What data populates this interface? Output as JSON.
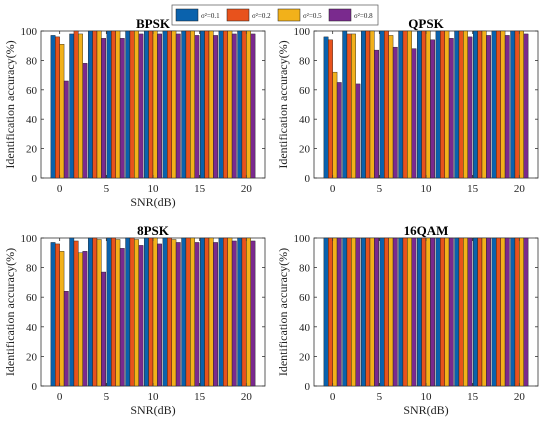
{
  "legend": [
    {
      "label": "σ²=0.1",
      "color": "#0a62ad"
    },
    {
      "label": "σ²=0.2",
      "color": "#e8521c"
    },
    {
      "label": "σ²=0.5",
      "color": "#f2b11a"
    },
    {
      "label": "σ²=0.8",
      "color": "#7a2a8e"
    }
  ],
  "chart_data": [
    {
      "type": "bar",
      "title": "BPSK",
      "xlabel": "SNR(dB)",
      "ylabel": "Identification accuracy(%)",
      "x": [
        0,
        2,
        4,
        6,
        8,
        10,
        12,
        14,
        16,
        18,
        20
      ],
      "xticks": [
        0,
        5,
        10,
        15,
        20
      ],
      "ylim": [
        0,
        100
      ],
      "yticks": [
        0,
        20,
        40,
        60,
        80,
        100
      ],
      "series": [
        {
          "name": "σ²=0.1",
          "values": [
            97,
            98,
            100,
            100,
            100,
            100,
            100,
            100,
            100,
            100,
            100
          ]
        },
        {
          "name": "σ²=0.2",
          "values": [
            96,
            100,
            100,
            100,
            100,
            100,
            100,
            100,
            100,
            100,
            100
          ]
        },
        {
          "name": "σ²=0.5",
          "values": [
            91,
            98,
            100,
            100,
            100,
            100,
            100,
            100,
            100,
            100,
            100
          ]
        },
        {
          "name": "σ²=0.8",
          "values": [
            66,
            78,
            95,
            95,
            98,
            98,
            98,
            97,
            97,
            98,
            98
          ]
        }
      ]
    },
    {
      "type": "bar",
      "title": "QPSK",
      "xlabel": "",
      "ylabel": "Identification accuracy(%)",
      "x": [
        0,
        2,
        4,
        6,
        8,
        10,
        12,
        14,
        16,
        18,
        20
      ],
      "xticks": [
        0,
        5,
        10,
        15,
        20
      ],
      "ylim": [
        0,
        100
      ],
      "yticks": [
        0,
        20,
        40,
        60,
        80,
        100
      ],
      "series": [
        {
          "name": "σ²=0.1",
          "values": [
            96,
            100,
            100,
            100,
            100,
            100,
            100,
            100,
            100,
            100,
            100
          ]
        },
        {
          "name": "σ²=0.2",
          "values": [
            94,
            98,
            100,
            100,
            100,
            100,
            100,
            100,
            100,
            100,
            100
          ]
        },
        {
          "name": "σ²=0.5",
          "values": [
            72,
            98,
            100,
            97,
            100,
            100,
            100,
            100,
            100,
            100,
            100
          ]
        },
        {
          "name": "σ²=0.8",
          "values": [
            65,
            64,
            87,
            89,
            88,
            94,
            95,
            96,
            97,
            97,
            98
          ]
        }
      ]
    },
    {
      "type": "bar",
      "title": "8PSK",
      "xlabel": "SNR(dB)",
      "ylabel": "Identification accuracy(%)",
      "x": [
        0,
        2,
        4,
        6,
        8,
        10,
        12,
        14,
        16,
        18,
        20
      ],
      "xticks": [
        0,
        5,
        10,
        15,
        20
      ],
      "ylim": [
        0,
        100
      ],
      "yticks": [
        0,
        20,
        40,
        60,
        80,
        100
      ],
      "series": [
        {
          "name": "σ²=0.1",
          "values": [
            97,
            100,
            100,
            100,
            100,
            100,
            100,
            100,
            100,
            100,
            100
          ]
        },
        {
          "name": "σ²=0.2",
          "values": [
            96,
            98,
            100,
            100,
            100,
            100,
            100,
            100,
            100,
            100,
            100
          ]
        },
        {
          "name": "σ²=0.5",
          "values": [
            91,
            90,
            99,
            99,
            99,
            100,
            99,
            100,
            100,
            100,
            100
          ]
        },
        {
          "name": "σ²=0.8",
          "values": [
            64,
            91,
            77,
            93,
            95,
            96,
            97,
            97,
            97,
            98,
            98
          ]
        }
      ]
    },
    {
      "type": "bar",
      "title": "16QAM",
      "xlabel": "SNR(dB)",
      "ylabel": "Identification accuracy(%)",
      "x": [
        0,
        2,
        4,
        6,
        8,
        10,
        12,
        14,
        16,
        18,
        20
      ],
      "xticks": [
        0,
        5,
        10,
        15,
        20
      ],
      "ylim": [
        0,
        100
      ],
      "yticks": [
        0,
        20,
        40,
        60,
        80,
        100
      ],
      "series": [
        {
          "name": "σ²=0.1",
          "values": [
            100,
            100,
            100,
            100,
            100,
            100,
            100,
            100,
            100,
            100,
            100
          ]
        },
        {
          "name": "σ²=0.2",
          "values": [
            100,
            100,
            100,
            100,
            100,
            100,
            100,
            100,
            100,
            100,
            100
          ]
        },
        {
          "name": "σ²=0.5",
          "values": [
            100,
            100,
            100,
            100,
            100,
            100,
            100,
            100,
            100,
            100,
            100
          ]
        },
        {
          "name": "σ²=0.8",
          "values": [
            100,
            100,
            100,
            100,
            100,
            100,
            100,
            100,
            100,
            100,
            100
          ]
        }
      ]
    }
  ]
}
